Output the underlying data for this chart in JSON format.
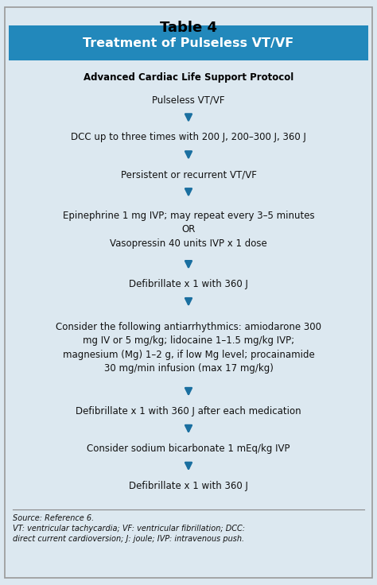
{
  "title": "Table 4",
  "header": "Treatment of Pulseless VT/VF",
  "subheader": "Advanced Cardiac Life Support Protocol",
  "flow_steps": [
    "Pulseless VT/VF",
    "DCC up to three times with 200 J, 200–300 J, 360 J",
    "Persistent or recurrent VT/VF",
    "Epinephrine 1 mg IVP; may repeat every 3–5 minutes\nOR\nVasopressin 40 units IVP x 1 dose",
    "Defibrillate x 1 with 360 J",
    "Consider the following antiarrhythmics: amiodarone 300\nmg IV or 5 mg/kg; lidocaine 1–1.5 mg/kg IVP;\nmagnesium (Mg) 1–2 g, if low Mg level; procainamide\n30 mg/min infusion (max 17 mg/kg)",
    "Defibrillate x 1 with 360 J after each medication",
    "Consider sodium bicarbonate 1 mEq/kg IVP",
    "Defibrillate x 1 with 360 J"
  ],
  "step_lines": [
    1,
    1,
    1,
    3,
    1,
    4,
    1,
    1,
    1
  ],
  "footnote": "Source: Reference 6.\nVT: ventricular tachycardia; VF: ventricular fibrillation; DCC:\ndirect current cardioversion; J: joule; IVP: intravenous push.",
  "bg_color": "#dce8f0",
  "header_bg": "#2288bb",
  "header_text_color": "#ffffff",
  "title_color": "#000000",
  "subheader_color": "#000000",
  "step_text_color": "#111111",
  "arrow_color": "#1a6fa0",
  "border_color": "#999999",
  "footnote_line_color": "#888888",
  "footnote_text_color": "#111111"
}
